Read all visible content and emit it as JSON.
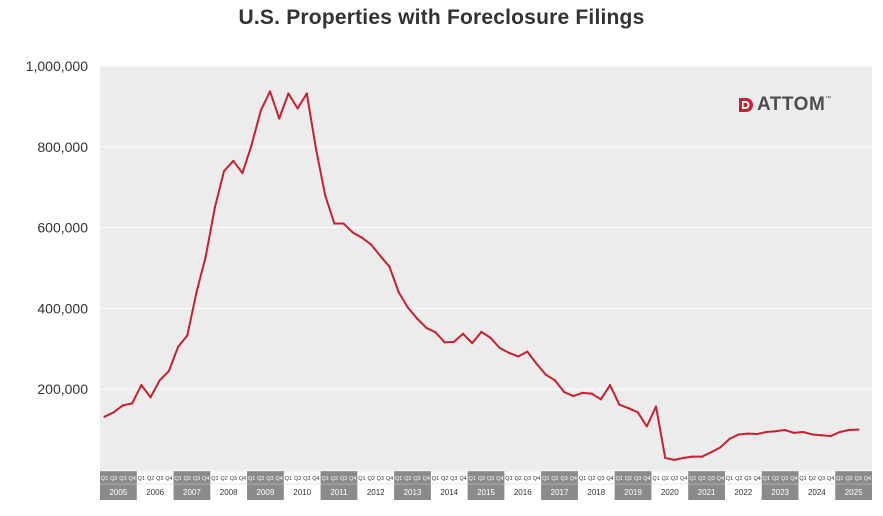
{
  "chart_data": {
    "type": "line",
    "title": "U.S. Properties with Foreclosure Filings",
    "xlabel": "",
    "ylabel": "",
    "ylim": [
      0,
      1000000
    ],
    "yticks": [
      200000,
      400000,
      600000,
      800000,
      1000000
    ],
    "ytick_labels": [
      "200,000",
      "400,000",
      "600,000",
      "800,000",
      "1,000,000"
    ],
    "grid": true,
    "quarter_labels": [
      "Q1",
      "Q2",
      "Q3",
      "Q4"
    ],
    "years": [
      "2005",
      "2006",
      "2007",
      "2008",
      "2009",
      "2010",
      "2011",
      "2012",
      "2013",
      "2014",
      "2015",
      "2016",
      "2017",
      "2018",
      "2019",
      "2020",
      "2021",
      "2022",
      "2023",
      "2024",
      "2025"
    ],
    "series": [
      {
        "name": "U.S. Properties with Foreclosure Filings",
        "color": "#c8202f",
        "values": [
          132000,
          143000,
          160000,
          165000,
          210000,
          180000,
          222000,
          245000,
          305000,
          333000,
          440000,
          528000,
          650000,
          740000,
          765000,
          735000,
          805000,
          890000,
          937000,
          870000,
          932000,
          895000,
          932000,
          795000,
          680000,
          610000,
          610000,
          588000,
          575000,
          558000,
          530000,
          503000,
          440000,
          402000,
          375000,
          352000,
          341000,
          316000,
          317000,
          337000,
          314000,
          342000,
          327000,
          302000,
          290000,
          281000,
          293000,
          263000,
          236000,
          222000,
          193000,
          183000,
          191000,
          189000,
          175000,
          210000,
          162000,
          153000,
          143000,
          108000,
          157000,
          30000,
          25000,
          30000,
          33000,
          33000,
          44000,
          56000,
          77000,
          88000,
          90000,
          89000,
          94000,
          96000,
          99000,
          92000,
          94000,
          88000,
          86000,
          84000,
          94000,
          99000,
          100000
        ]
      }
    ]
  },
  "logo": {
    "text": "ATTOM",
    "tm": "™",
    "accent_color": "#c8202f",
    "text_color": "#4d4d4d"
  }
}
